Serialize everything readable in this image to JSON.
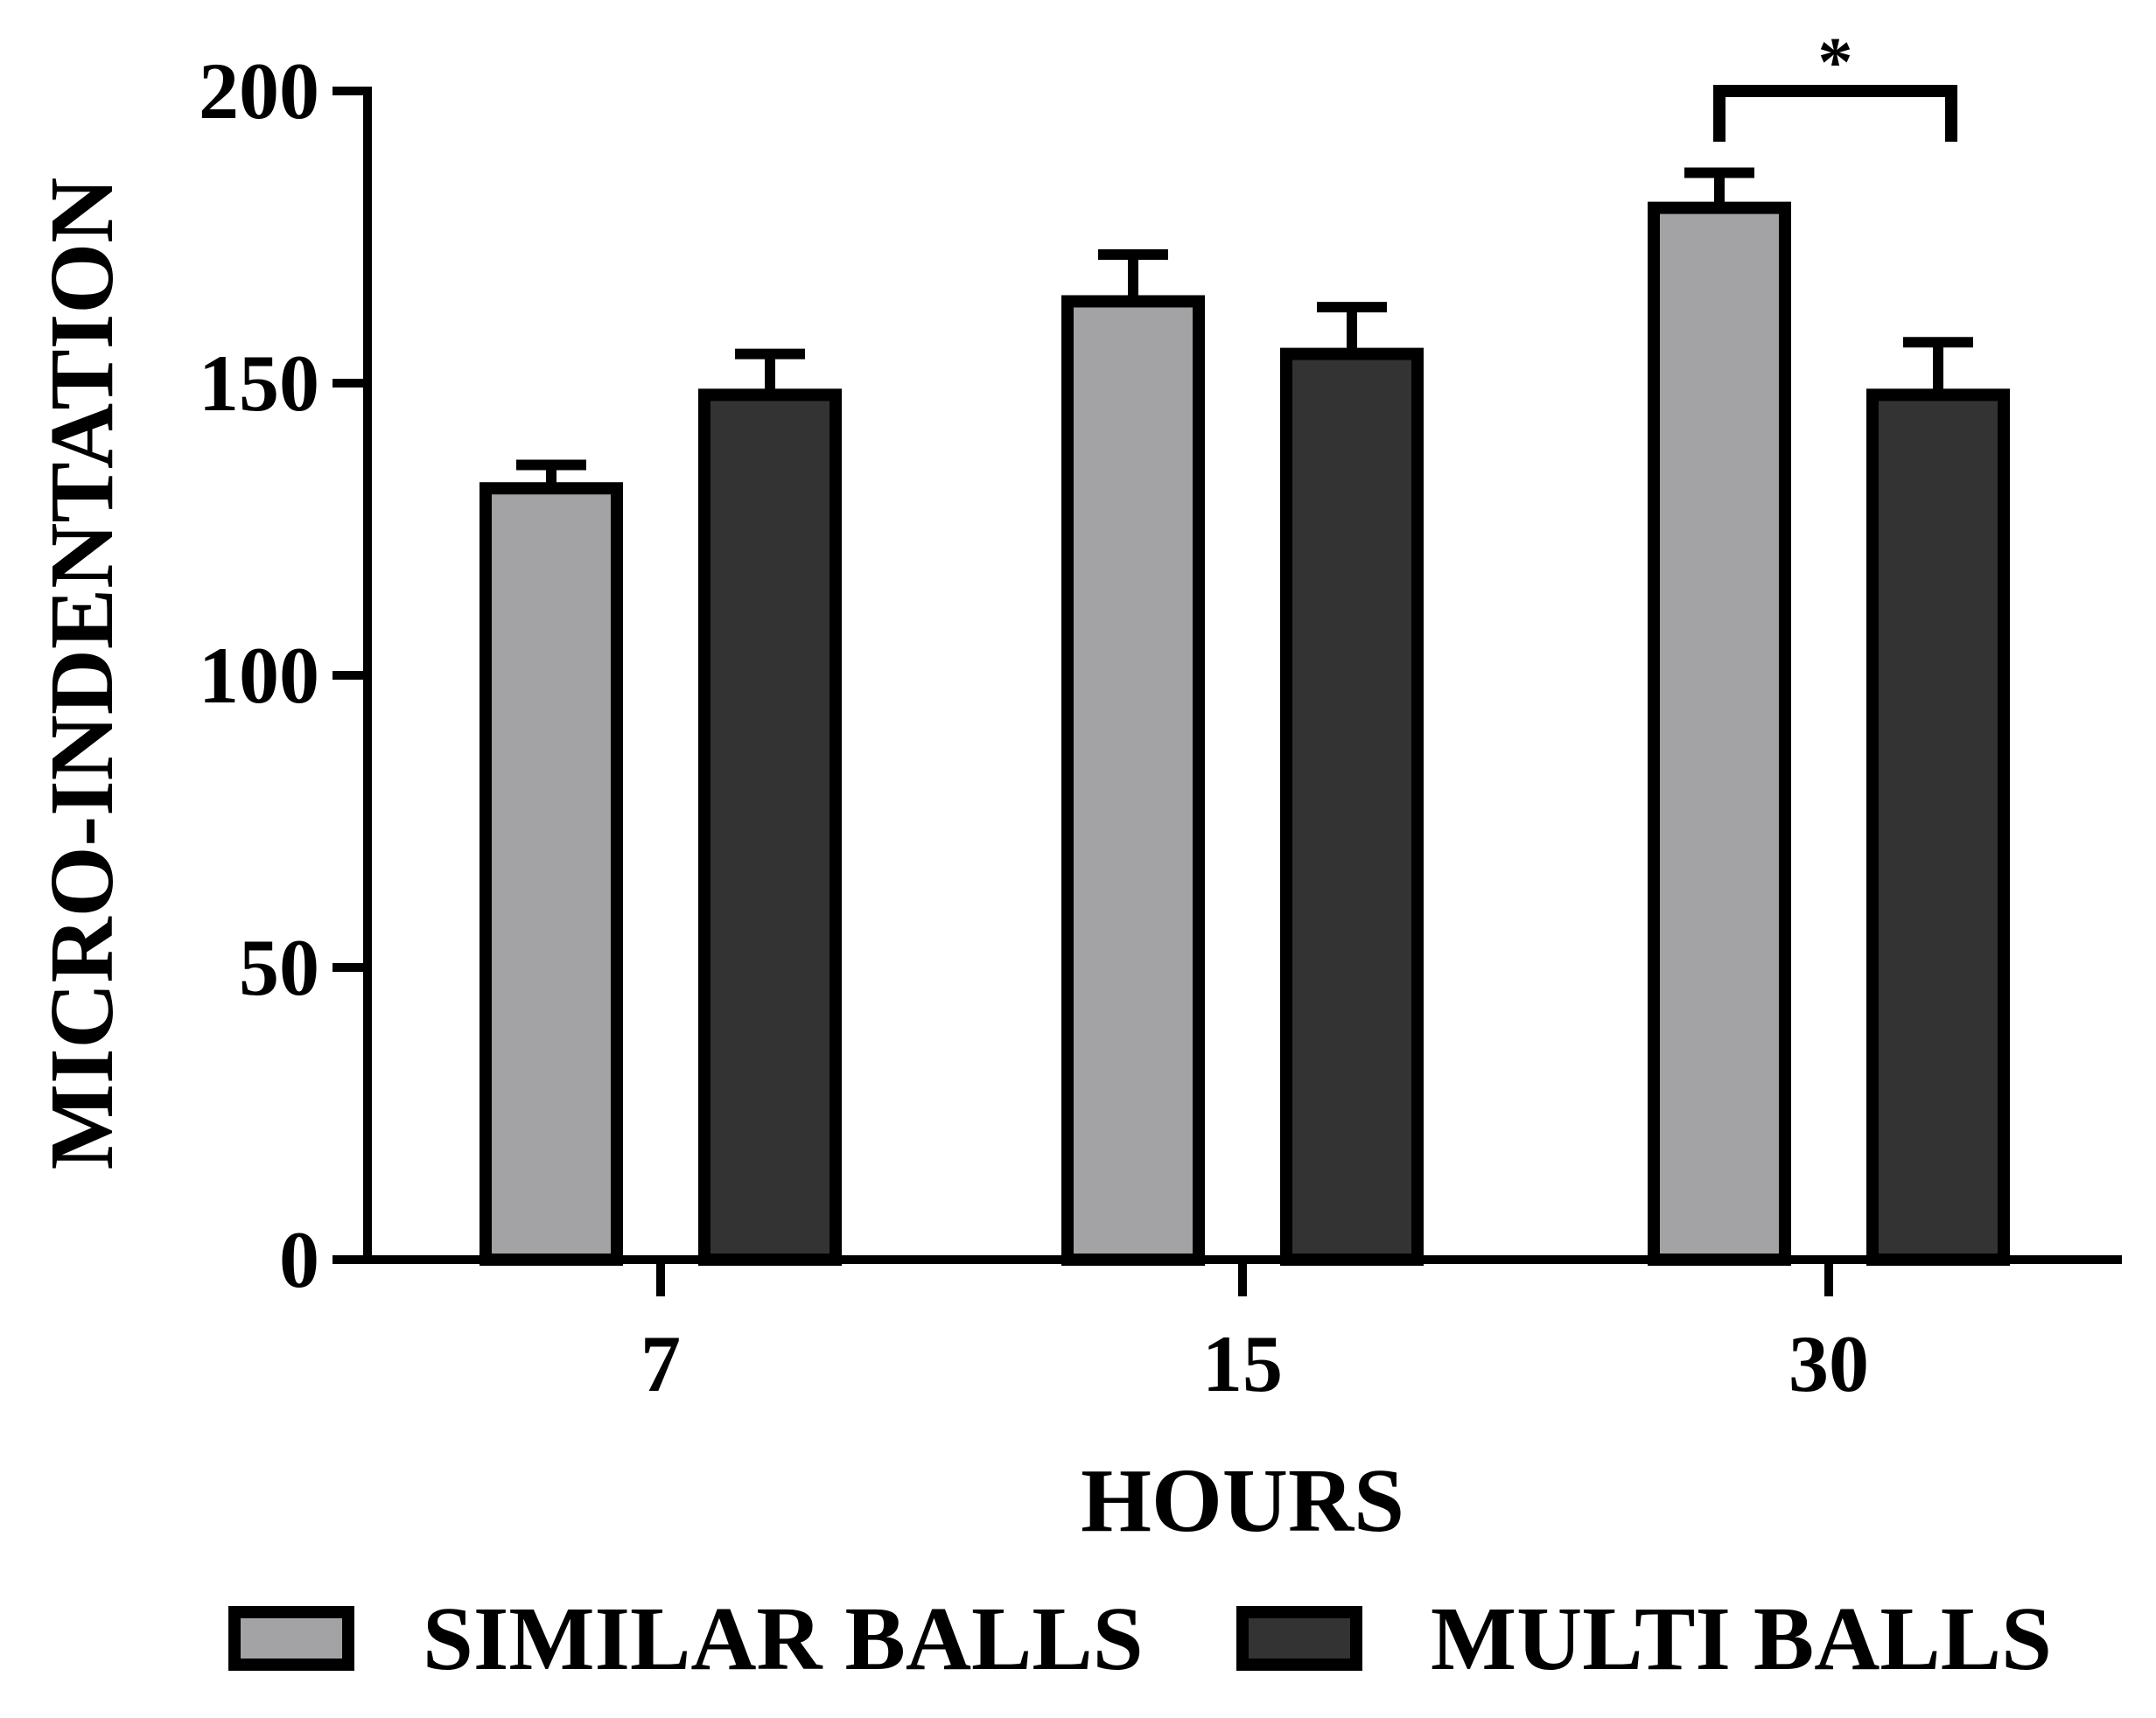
{
  "chart_data": {
    "type": "bar",
    "categories": [
      "7",
      "15",
      "30"
    ],
    "series": [
      {
        "name": "SIMILAR BALLS",
        "color": "#a3a3a6",
        "values": [
          132,
          164,
          180
        ],
        "errors": [
          4,
          8,
          6
        ]
      },
      {
        "name": "MULTI BALLS",
        "color": "#333333",
        "values": [
          148,
          155,
          148
        ],
        "errors": [
          7,
          8,
          9
        ]
      }
    ],
    "title": "",
    "xlabel": "HOURS",
    "ylabel": "MICRO-INDENTATION",
    "ylim": [
      0,
      200
    ],
    "yticks": [
      "0",
      "50",
      "100",
      "150",
      "200"
    ],
    "grid": false,
    "legend_position": "bottom",
    "annotations": [
      {
        "category": "30",
        "label": "*"
      }
    ]
  }
}
